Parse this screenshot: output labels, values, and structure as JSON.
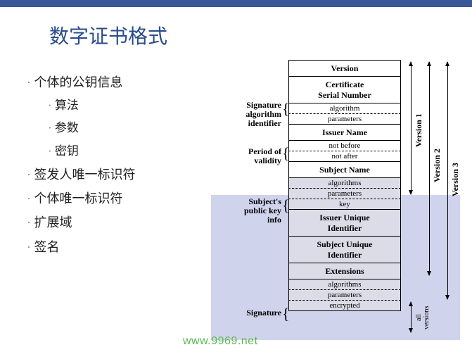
{
  "title": "数字证书格式",
  "bullets": [
    {
      "level": 1,
      "text": "个体的公钥信息"
    },
    {
      "level": 2,
      "text": "算法"
    },
    {
      "level": 2,
      "text": "参数"
    },
    {
      "level": 2,
      "text": "密钥"
    },
    {
      "level": 1,
      "text": "签发人唯一标识符"
    },
    {
      "level": 1,
      "text": "个体唯一标识符"
    },
    {
      "level": 1,
      "text": "扩展域"
    },
    {
      "level": 1,
      "text": "签名"
    }
  ],
  "cert": {
    "version": "Version",
    "serial": "Certificate\nSerial Number",
    "sig_algo_label": "Signature\nalgorithm\nidentifier",
    "sig_algo_sub": [
      "algorithm",
      "parameters"
    ],
    "issuer": "Issuer Name",
    "validity_label": "Period of\nvalidity",
    "validity_sub": [
      "not before",
      "not after"
    ],
    "subject": "Subject Name",
    "spki_label": "Subject's\npublic key\ninfo",
    "spki_sub": [
      "algorithms",
      "parameters",
      "key"
    ],
    "issuer_uid": "Issuer Unique\nIdentifier",
    "subject_uid": "Subject Unique\nIdentifier",
    "extensions": "Extensions",
    "signature_label": "Signature",
    "signature_sub": [
      "algorithms",
      "parameters",
      "encrypted"
    ]
  },
  "arrows": {
    "v1": "Version 1",
    "v2": "Version 2",
    "v3": "Version 3",
    "all": "all\nversions"
  },
  "colors": {
    "topbar": "#3b5998",
    "title": "#2a4b8d",
    "overlay": "rgba(120,130,200,0.35)",
    "shaded_cell": "#dcdce8",
    "watermark": "#5ab84f"
  },
  "watermark": "www.9969.net"
}
